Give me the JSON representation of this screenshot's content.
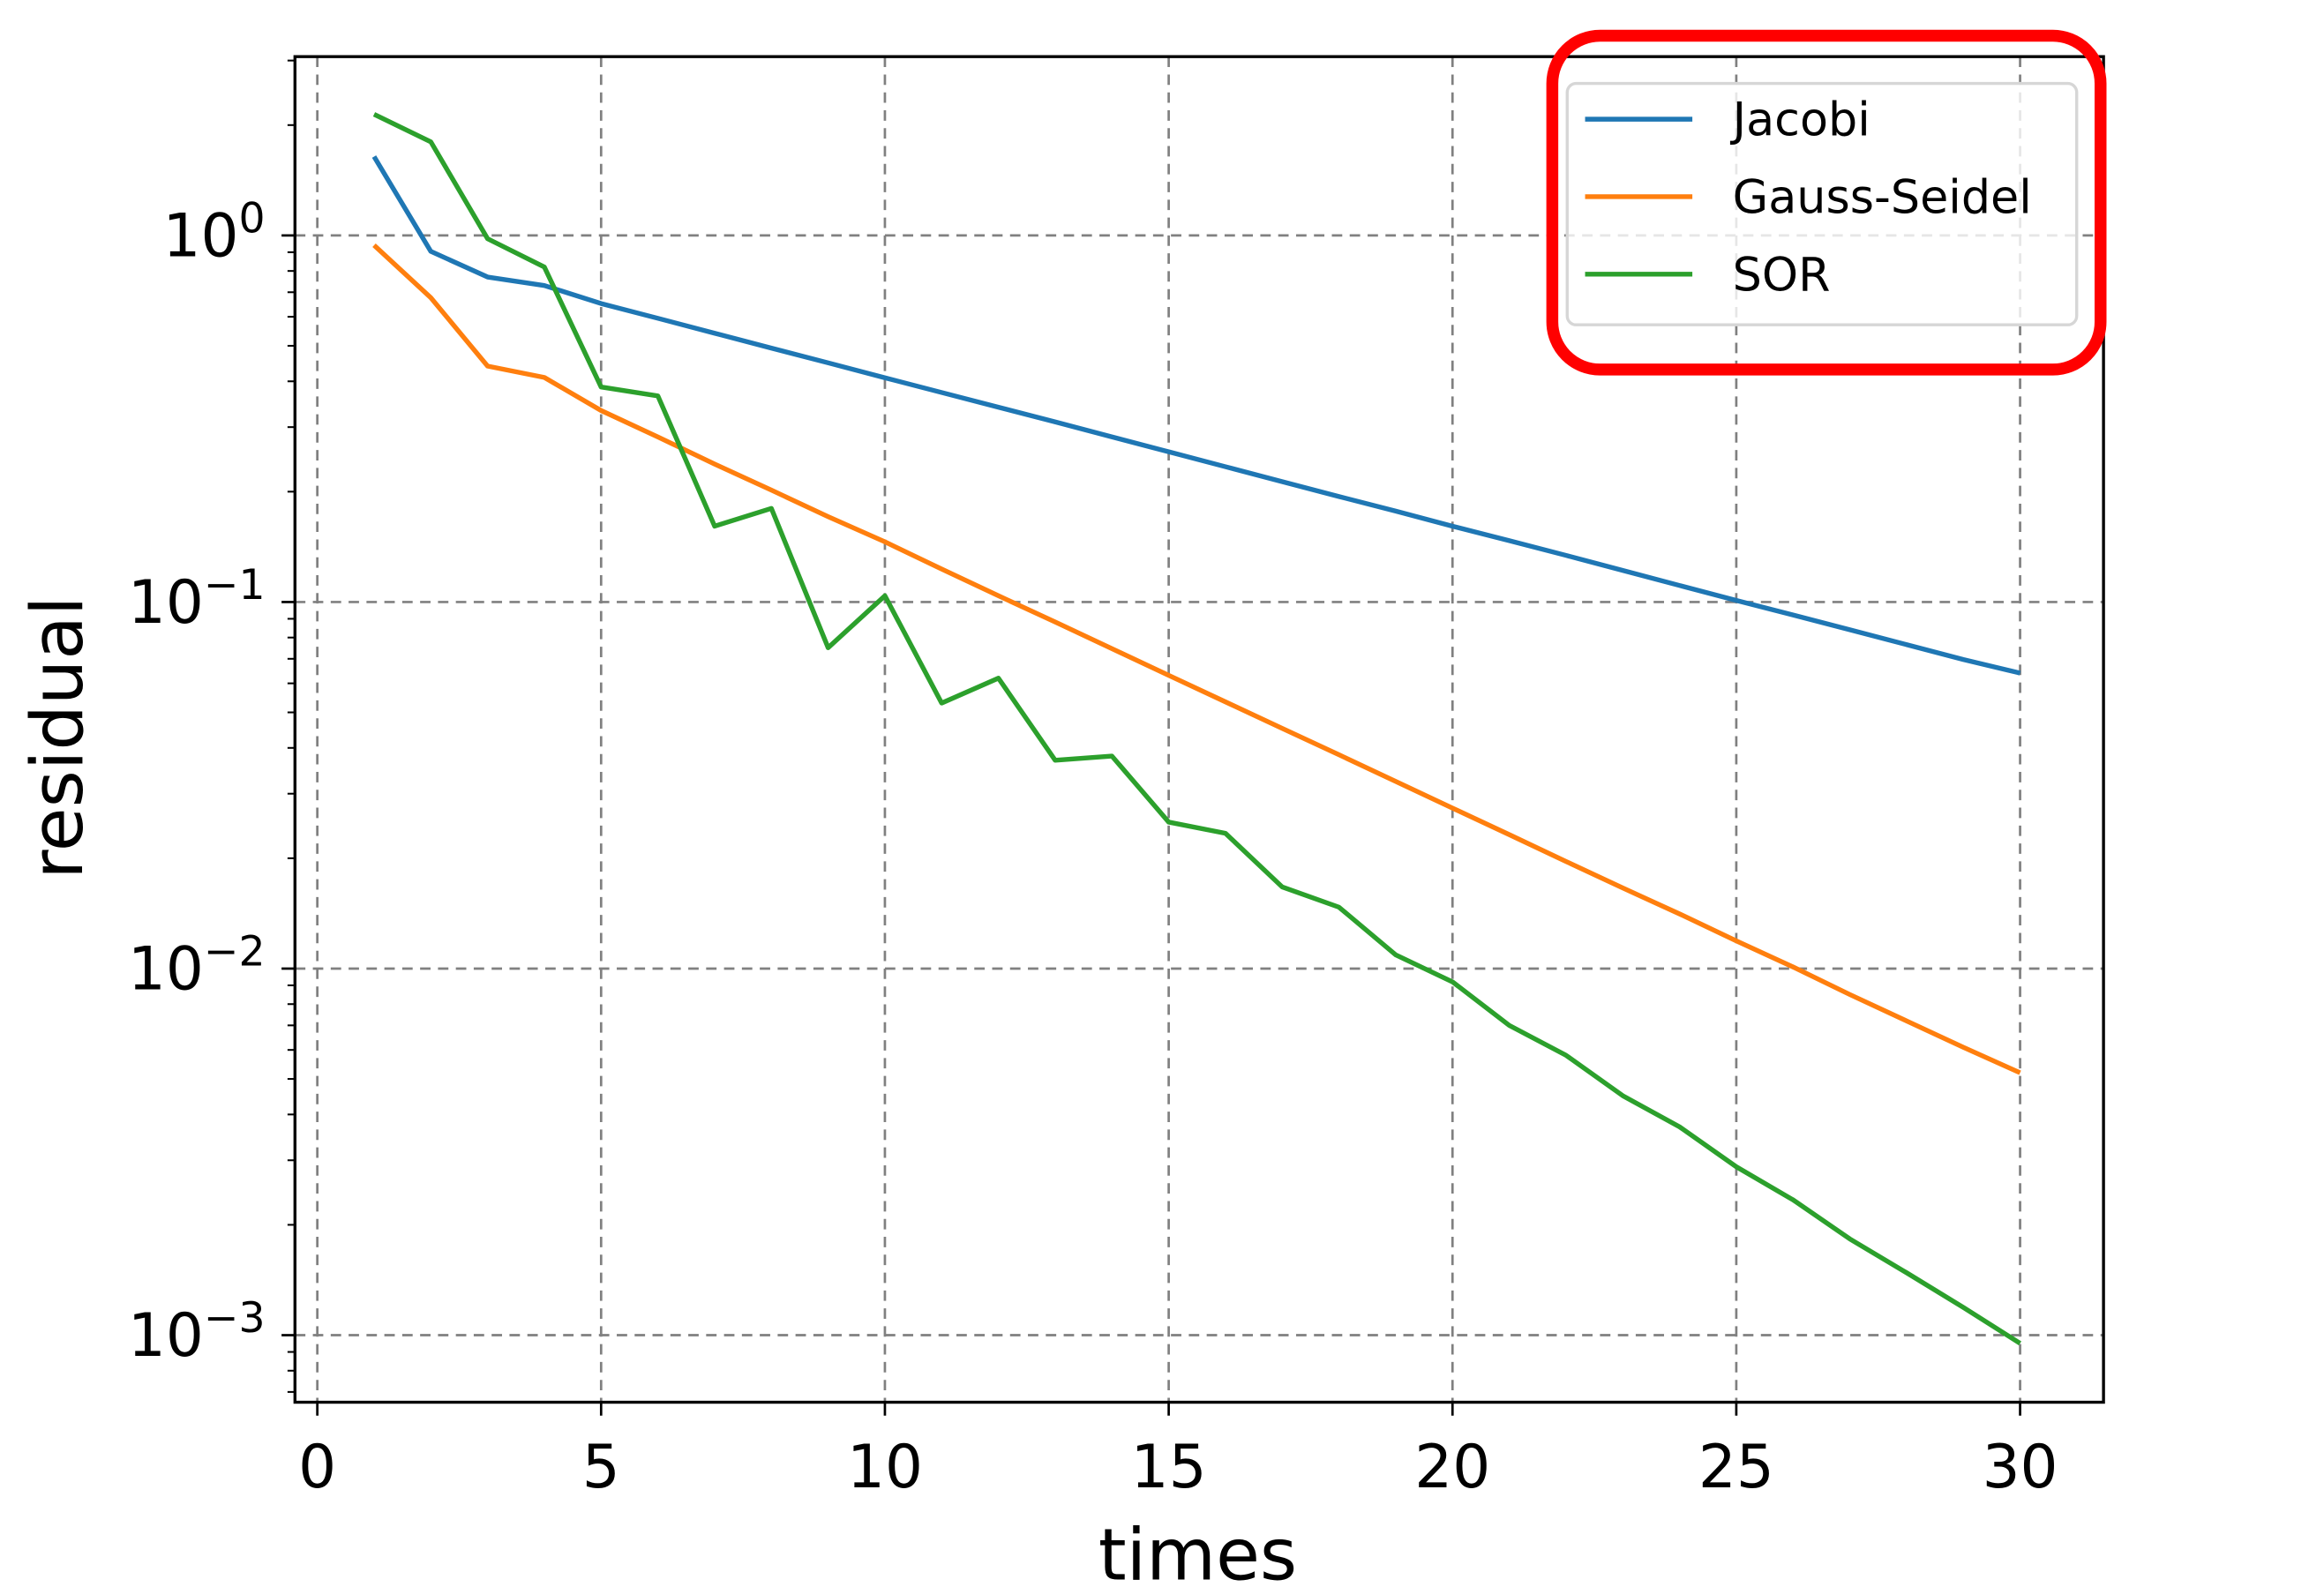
{
  "chart_data": {
    "type": "line",
    "title": "",
    "xlabel": "times",
    "ylabel": "residual",
    "yscale": "log",
    "xlim": [
      -0.45,
      31.45
    ],
    "ylim": [
      0.00066,
      3.07
    ],
    "grid": {
      "on": true,
      "style": "dashed",
      "color": "#808080"
    },
    "x_ticks": [
      0,
      5,
      10,
      15,
      20,
      25,
      30
    ],
    "x_tick_labels": [
      "0",
      "5",
      "10",
      "15",
      "20",
      "25",
      "30"
    ],
    "y_ticks": [
      1,
      0.1,
      0.01,
      0.001
    ],
    "y_tick_labels": [
      {
        "base": "10",
        "exp": "0"
      },
      {
        "base": "10",
        "exp": "−1"
      },
      {
        "base": "10",
        "exp": "−2"
      },
      {
        "base": "10",
        "exp": "−3"
      }
    ],
    "x": [
      1,
      2,
      3,
      4,
      5,
      6,
      7,
      8,
      9,
      10,
      11,
      12,
      13,
      14,
      15,
      16,
      17,
      18,
      19,
      20,
      21,
      22,
      23,
      24,
      25,
      26,
      27,
      28,
      29,
      30
    ],
    "series": [
      {
        "name": "Jacobi",
        "color": "#1f77b4",
        "values": [
          1.64,
          0.905,
          0.77,
          0.73,
          0.652,
          0.594,
          0.541,
          0.493,
          0.449,
          0.409,
          0.373,
          0.34,
          0.31,
          0.282,
          0.257,
          0.234,
          0.213,
          0.194,
          0.177,
          0.161,
          0.147,
          0.134,
          0.122,
          0.111,
          0.101,
          0.0922,
          0.084,
          0.0765,
          0.0697,
          0.064
        ]
      },
      {
        "name": "Gauss-Seidel",
        "color": "#ff7f0e",
        "values": [
          0.94,
          0.676,
          0.44,
          0.41,
          0.333,
          0.282,
          0.238,
          0.202,
          0.171,
          0.146,
          0.123,
          0.104,
          0.0882,
          0.0746,
          0.0631,
          0.0534,
          0.0452,
          0.0383,
          0.0324,
          0.0274,
          0.0232,
          0.0196,
          0.0166,
          0.0141,
          0.0119,
          0.0101,
          0.0085,
          0.0072,
          0.0061,
          0.0052
        ]
      },
      {
        "name": "SOR",
        "color": "#2ca02c",
        "values": [
          2.14,
          1.8,
          0.98,
          0.82,
          0.386,
          0.365,
          0.161,
          0.18,
          0.075,
          0.104,
          0.053,
          0.062,
          0.037,
          0.038,
          0.0251,
          0.0234,
          0.0167,
          0.0147,
          0.0109,
          0.0092,
          0.007,
          0.0058,
          0.0045,
          0.0037,
          0.00288,
          0.00234,
          0.00183,
          0.00148,
          0.00119,
          0.00095
        ]
      }
    ],
    "legend": {
      "position": "upper right",
      "entries": [
        "Jacobi",
        "Gauss-Seidel",
        "SOR"
      ],
      "highlight": {
        "shape": "rounded-rectangle",
        "color": "#ff0000"
      }
    }
  }
}
